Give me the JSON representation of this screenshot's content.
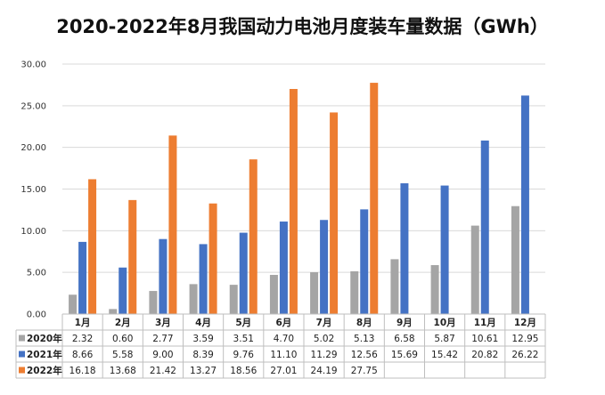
{
  "chart_data": {
    "type": "bar",
    "title": "2020-2022年8月我国动力电池月度装车量数据（GWh）",
    "categories": [
      "1月",
      "2月",
      "3月",
      "4月",
      "5月",
      "6月",
      "7月",
      "8月",
      "9月",
      "10月",
      "11月",
      "12月"
    ],
    "series": [
      {
        "name": "2020年",
        "color": "#a5a5a5",
        "values": [
          2.32,
          0.6,
          2.77,
          3.59,
          3.51,
          4.7,
          5.02,
          5.13,
          6.58,
          5.87,
          10.61,
          12.95
        ],
        "labels": [
          "2.32",
          "0.60",
          "2.77",
          "3.59",
          "3.51",
          "4.70",
          "5.02",
          "5.13",
          "6.58",
          "5.87",
          "10.61",
          "12.95"
        ]
      },
      {
        "name": "2021年",
        "color": "#4472c4",
        "values": [
          8.66,
          5.58,
          9.0,
          8.39,
          9.76,
          11.1,
          11.29,
          12.56,
          15.69,
          15.42,
          20.82,
          26.22
        ],
        "labels": [
          "8.66",
          "5.58",
          "9.00",
          "8.39",
          "9.76",
          "11.10",
          "11.29",
          "12.56",
          "15.69",
          "15.42",
          "20.82",
          "26.22"
        ]
      },
      {
        "name": "2022年",
        "color": "#ed7d31",
        "values": [
          16.18,
          13.68,
          21.42,
          13.27,
          18.56,
          27.01,
          24.19,
          27.75,
          null,
          null,
          null,
          null
        ],
        "labels": [
          "16.18",
          "13.68",
          "21.42",
          "13.27",
          "18.56",
          "27.01",
          "24.19",
          "27.75",
          "",
          "",
          "",
          ""
        ]
      }
    ],
    "ylim": [
      0,
      30
    ],
    "yticks": [
      "0.00",
      "5.00",
      "10.00",
      "15.00",
      "20.00",
      "25.00",
      "30.00"
    ],
    "grid": true,
    "legend": "data-table"
  }
}
